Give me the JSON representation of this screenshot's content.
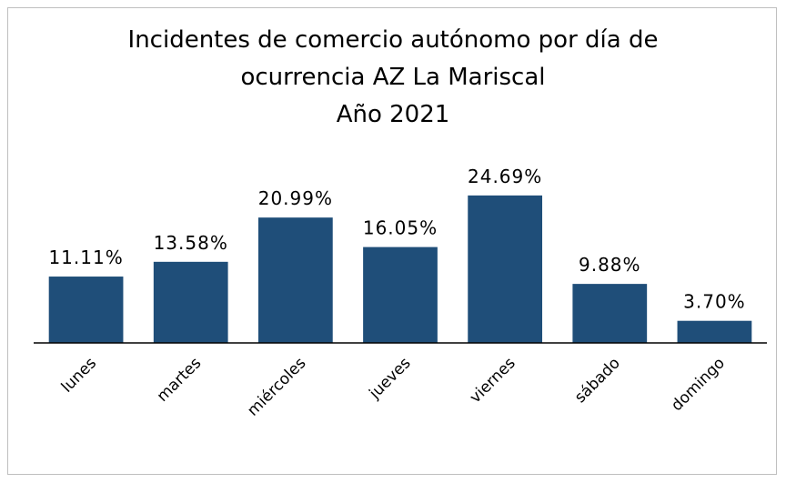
{
  "chart_data": {
    "type": "bar",
    "title": [
      "Incidentes de comercio autónomo por día de",
      "ocurrencia AZ La Mariscal",
      "Año 2021"
    ],
    "categories": [
      "lunes",
      "martes",
      "miércoles",
      "jueves",
      "viernes",
      "sábado",
      "domingo"
    ],
    "values": [
      11.11,
      13.58,
      20.99,
      16.05,
      24.69,
      9.88,
      3.7
    ],
    "value_labels": [
      "11.11%",
      "13.58%",
      "20.99%",
      "16.05%",
      "24.69%",
      "9.88%",
      "3.70%"
    ],
    "color": "#1f4e79",
    "ylim": [
      0,
      30
    ]
  }
}
